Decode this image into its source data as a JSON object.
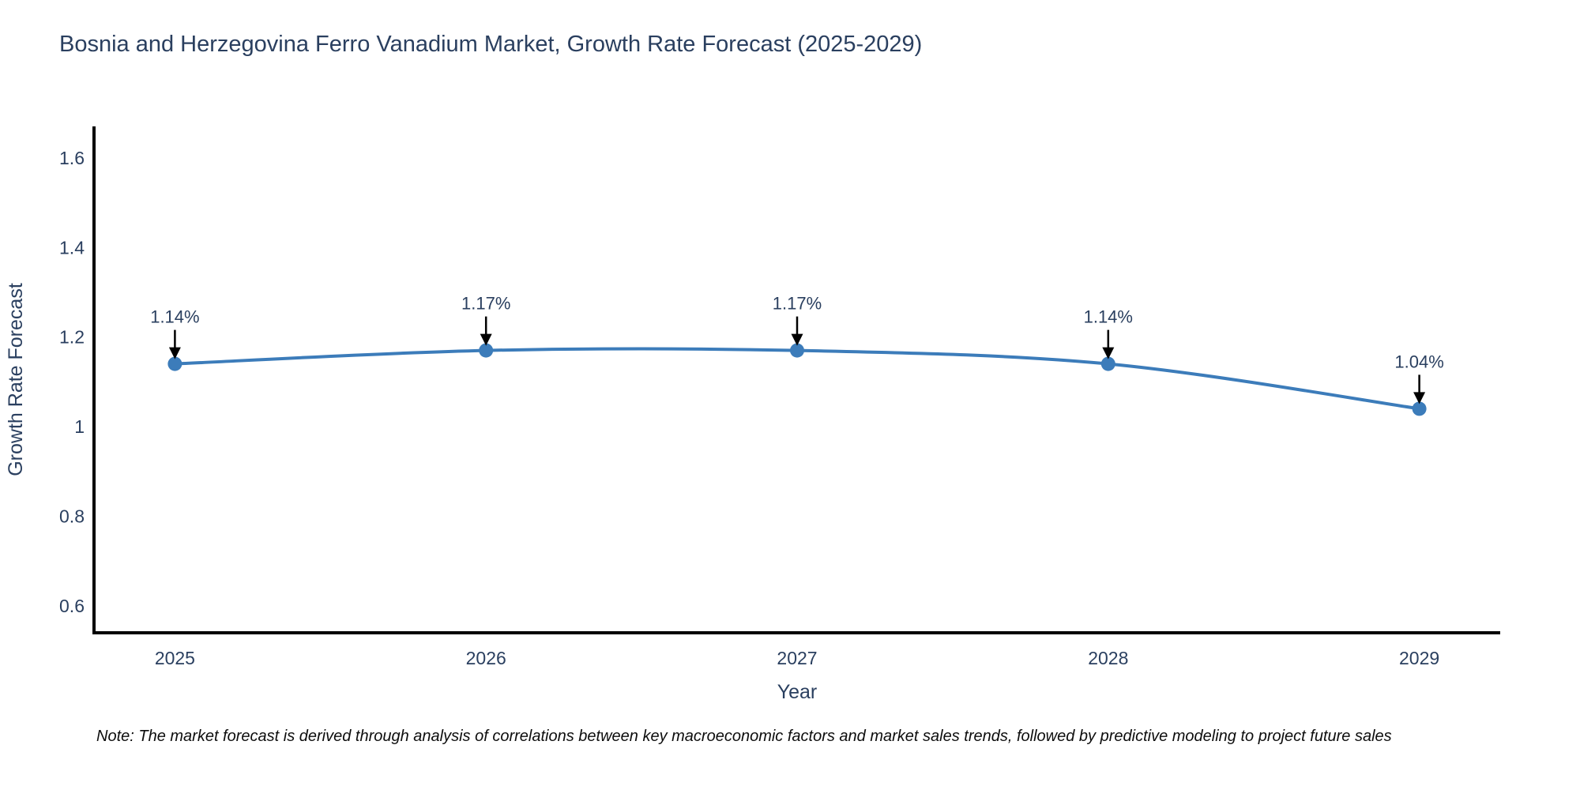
{
  "header": {},
  "footer": {
    "note": "Note: The market forecast is derived through analysis of correlations between key macroeconomic factors and market sales trends, followed by predictive modeling to project future sales"
  },
  "chart_data": {
    "type": "line",
    "title": "Bosnia and Herzegovina Ferro Vanadium Market, Growth Rate Forecast (2025-2029)",
    "x": [
      2025,
      2026,
      2027,
      2028,
      2029
    ],
    "x_tick_labels": [
      "2025",
      "2026",
      "2027",
      "2028",
      "2029"
    ],
    "series": [
      {
        "name": "Growth Rate Forecast",
        "values": [
          1.14,
          1.17,
          1.17,
          1.14,
          1.04
        ],
        "point_labels": [
          "1.14%",
          "1.17%",
          "1.17%",
          "1.14%",
          "1.04%"
        ]
      }
    ],
    "xlabel": "Year",
    "ylabel": "Growth Rate Forecast",
    "y_ticks": [
      0.6,
      0.8,
      1,
      1.2,
      1.4,
      1.6
    ],
    "y_tick_labels": [
      "0.6",
      "0.8",
      "1",
      "1.2",
      "1.4",
      "1.6"
    ],
    "xlim": [
      2024.74,
      2029.26
    ],
    "ylim": [
      0.54,
      1.67
    ],
    "grid": false,
    "legend": "none",
    "line_shape": "spline",
    "colors": {
      "line": "#3c7cba",
      "marker": "#3c7cba",
      "axis": "#000000",
      "text": "#2a3f5f",
      "annotation_text": "#2a3f5f",
      "annotation_arrow": "#000000",
      "background": "#ffffff"
    }
  }
}
